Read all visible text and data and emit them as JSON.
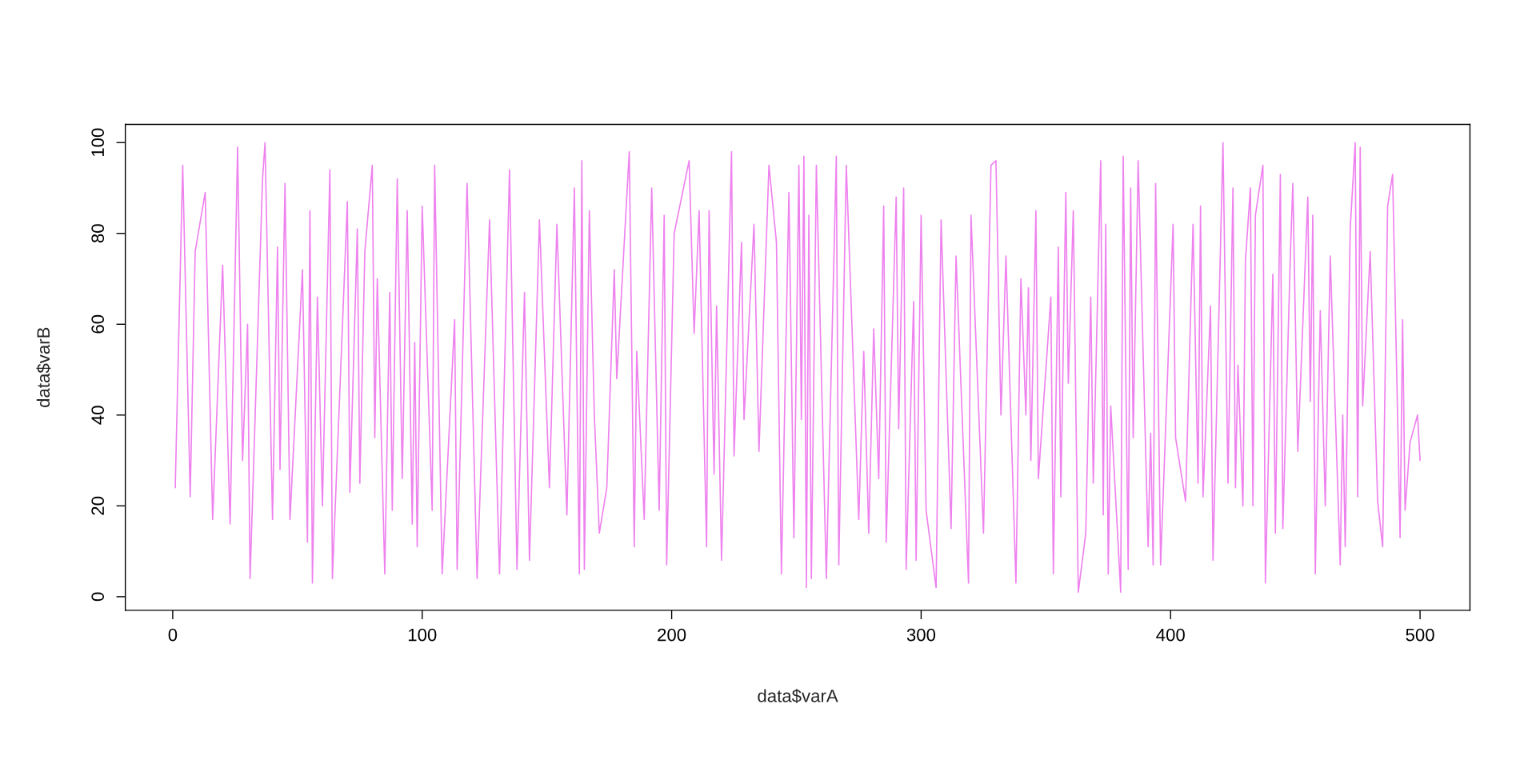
{
  "chart_data": {
    "type": "line",
    "xlabel": "data$varA",
    "ylabel": "data$varB",
    "color": "#ee82ee",
    "x": [
      1,
      4,
      7,
      9,
      13,
      16,
      20,
      23,
      26,
      28,
      30,
      31,
      36,
      37,
      40,
      42,
      43,
      45,
      47,
      52,
      54,
      55,
      56,
      58,
      60,
      63,
      64,
      70,
      71,
      74,
      75,
      77,
      80,
      81,
      82,
      85,
      87,
      88,
      90,
      92,
      94,
      96,
      97,
      98,
      100,
      104,
      105,
      108,
      113,
      114,
      118,
      122,
      127,
      131,
      135,
      138,
      141,
      143,
      147,
      151,
      154,
      158,
      161,
      163,
      164,
      165,
      167,
      169,
      171,
      174,
      177,
      178,
      183,
      185,
      186,
      189,
      192,
      195,
      197,
      198,
      201,
      207,
      209,
      211,
      214,
      215,
      217,
      218,
      220,
      224,
      225,
      228,
      229,
      233,
      235,
      239,
      242,
      244,
      247,
      249,
      251,
      252,
      253,
      254,
      255,
      256,
      258,
      262,
      266,
      267,
      270,
      275,
      277,
      279,
      281,
      283,
      285,
      286,
      290,
      291,
      293,
      294,
      297,
      298,
      300,
      302,
      306,
      308,
      312,
      314,
      319,
      320,
      325,
      328,
      330,
      332,
      334,
      338,
      340,
      342,
      343,
      344,
      346,
      347,
      352,
      353,
      355,
      356,
      358,
      359,
      361,
      363,
      366,
      368,
      369,
      372,
      373,
      374,
      375,
      376,
      380,
      381,
      383,
      384,
      385,
      387,
      391,
      392,
      393,
      394,
      396,
      401,
      402,
      406,
      409,
      411,
      412,
      413,
      416,
      417,
      421,
      423,
      425,
      426,
      427,
      429,
      430,
      432,
      433,
      434,
      437,
      438,
      441,
      442,
      444,
      445,
      448,
      449,
      451,
      455,
      456,
      457,
      458,
      460,
      462,
      464,
      468,
      469,
      470,
      472,
      474,
      475,
      476,
      477,
      480,
      483,
      485,
      487,
      489,
      492,
      493,
      494,
      496,
      499,
      500
    ],
    "values": [
      24,
      95,
      22,
      76,
      89,
      17,
      73,
      16,
      99,
      30,
      60,
      4,
      92,
      100,
      17,
      77,
      28,
      91,
      17,
      72,
      12,
      85,
      3,
      66,
      20,
      94,
      4,
      87,
      23,
      81,
      25,
      76,
      95,
      35,
      70,
      5,
      67,
      19,
      92,
      26,
      85,
      16,
      56,
      11,
      86,
      19,
      95,
      5,
      61,
      6,
      91,
      4,
      83,
      5,
      94,
      6,
      67,
      8,
      83,
      24,
      82,
      18,
      90,
      5,
      96,
      6,
      85,
      40,
      14,
      24,
      72,
      48,
      98,
      11,
      54,
      17,
      90,
      19,
      84,
      7,
      80,
      96,
      58,
      85,
      11,
      85,
      27,
      64,
      8,
      98,
      31,
      78,
      39,
      82,
      32,
      95,
      78,
      5,
      89,
      13,
      95,
      39,
      97,
      2,
      84,
      4,
      95,
      4,
      97,
      7,
      95,
      17,
      54,
      14,
      59,
      26,
      86,
      12,
      88,
      37,
      90,
      6,
      65,
      8,
      84,
      19,
      2,
      83,
      15,
      75,
      3,
      84,
      14,
      95,
      96,
      40,
      75,
      3,
      70,
      40,
      68,
      30,
      85,
      26,
      66,
      5,
      77,
      22,
      89,
      47,
      85,
      1,
      14,
      66,
      25,
      96,
      18,
      82,
      5,
      42,
      1,
      97,
      6,
      90,
      35,
      96,
      11,
      36,
      7,
      91,
      7,
      82,
      35,
      21,
      82,
      25,
      86,
      22,
      64,
      8,
      100,
      25,
      90,
      24,
      51,
      20,
      74,
      90,
      20,
      84,
      95,
      3,
      71,
      14,
      93,
      15,
      75,
      91,
      32,
      88,
      43,
      84,
      5,
      63,
      20,
      75,
      7,
      40,
      11,
      81,
      100,
      22,
      99,
      42,
      76,
      21,
      11,
      86,
      93,
      13,
      61,
      19,
      34,
      40,
      30
    ],
    "xlim": [
      -19,
      520
    ],
    "ylim": [
      -3,
      104
    ],
    "xticks": [
      0,
      100,
      200,
      300,
      400,
      500
    ],
    "yticks": [
      0,
      20,
      40,
      60,
      80,
      100
    ]
  }
}
